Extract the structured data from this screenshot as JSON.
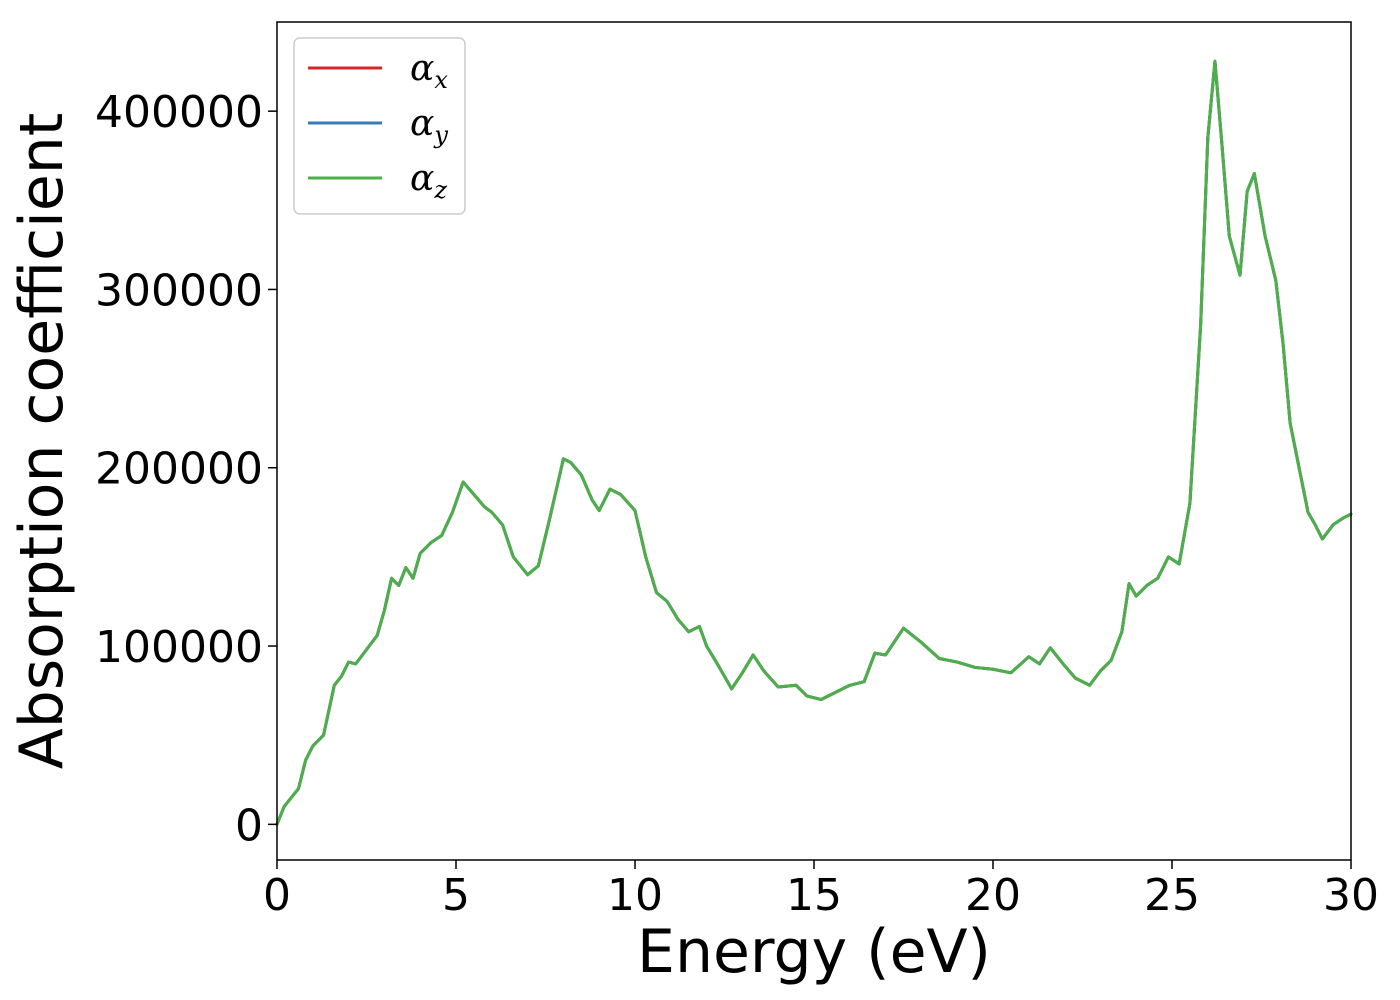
{
  "chart_data": {
    "type": "line",
    "xlabel": "Energy (eV)",
    "ylabel": "Absorption coefficient",
    "xlim": [
      0,
      30
    ],
    "ylim": [
      -20000,
      450000
    ],
    "xticks": [
      0,
      5,
      10,
      15,
      20,
      25,
      30
    ],
    "yticks": [
      0,
      100000,
      200000,
      300000,
      400000
    ],
    "grid": false,
    "legend_position": "top-left",
    "series": [
      {
        "name": "α",
        "subscript": "x",
        "color": "#d62728",
        "x": [
          0,
          0.2,
          0.4,
          0.6,
          0.8,
          1.0,
          1.3,
          1.6,
          1.8,
          2.0,
          2.2,
          2.5,
          2.8,
          3.0,
          3.2,
          3.4,
          3.6,
          3.8,
          4.0,
          4.3,
          4.6,
          4.9,
          5.2,
          5.5,
          5.8,
          6.0,
          6.3,
          6.6,
          7.0,
          7.3,
          7.6,
          8.0,
          8.2,
          8.5,
          8.8,
          9.0,
          9.3,
          9.6,
          10.0,
          10.3,
          10.6,
          10.9,
          11.2,
          11.5,
          11.8,
          12.0,
          12.3,
          12.7,
          13.0,
          13.3,
          13.6,
          14.0,
          14.5,
          14.8,
          15.2,
          15.6,
          16.0,
          16.4,
          16.7,
          17.0,
          17.5,
          18.0,
          18.5,
          19.0,
          19.5,
          20.0,
          20.5,
          21.0,
          21.3,
          21.6,
          22.0,
          22.3,
          22.7,
          23.0,
          23.3,
          23.6,
          23.8,
          24.0,
          24.3,
          24.6,
          24.9,
          25.2,
          25.5,
          25.8,
          26.0,
          26.2,
          26.4,
          26.6,
          26.9,
          27.1,
          27.3,
          27.6,
          27.9,
          28.1,
          28.3,
          28.5,
          28.8,
          29.0,
          29.2,
          29.5,
          29.8,
          30.0
        ],
        "y": [
          0,
          10000,
          15000,
          20000,
          36000,
          44000,
          50000,
          78000,
          83000,
          91000,
          90000,
          98000,
          106000,
          120000,
          138000,
          134000,
          144000,
          138000,
          152000,
          158000,
          162000,
          175000,
          192000,
          185000,
          178000,
          175000,
          168000,
          150000,
          140000,
          145000,
          170000,
          205000,
          203000,
          196000,
          182000,
          176000,
          188000,
          185000,
          176000,
          150000,
          130000,
          125000,
          115000,
          108000,
          111000,
          100000,
          90000,
          76000,
          85000,
          95000,
          86000,
          77000,
          78000,
          72000,
          70000,
          74000,
          78000,
          80000,
          96000,
          95000,
          110000,
          102000,
          93000,
          91000,
          88000,
          87000,
          85000,
          94000,
          90000,
          99000,
          89000,
          82000,
          78000,
          86000,
          92000,
          108000,
          135000,
          128000,
          134000,
          138000,
          150000,
          146000,
          180000,
          280000,
          385000,
          428000,
          380000,
          330000,
          308000,
          355000,
          365000,
          330000,
          305000,
          270000,
          225000,
          205000,
          175000,
          168000,
          160000,
          168000,
          172000,
          174000
        ]
      },
      {
        "name": "α",
        "subscript": "y",
        "color": "#377eb8",
        "x": [
          0,
          0.2,
          0.4,
          0.6,
          0.8,
          1.0,
          1.3,
          1.6,
          1.8,
          2.0,
          2.2,
          2.5,
          2.8,
          3.0,
          3.2,
          3.4,
          3.6,
          3.8,
          4.0,
          4.3,
          4.6,
          4.9,
          5.2,
          5.5,
          5.8,
          6.0,
          6.3,
          6.6,
          7.0,
          7.3,
          7.6,
          8.0,
          8.2,
          8.5,
          8.8,
          9.0,
          9.3,
          9.6,
          10.0,
          10.3,
          10.6,
          10.9,
          11.2,
          11.5,
          11.8,
          12.0,
          12.3,
          12.7,
          13.0,
          13.3,
          13.6,
          14.0,
          14.5,
          14.8,
          15.2,
          15.6,
          16.0,
          16.4,
          16.7,
          17.0,
          17.5,
          18.0,
          18.5,
          19.0,
          19.5,
          20.0,
          20.5,
          21.0,
          21.3,
          21.6,
          22.0,
          22.3,
          22.7,
          23.0,
          23.3,
          23.6,
          23.8,
          24.0,
          24.3,
          24.6,
          24.9,
          25.2,
          25.5,
          25.8,
          26.0,
          26.2,
          26.4,
          26.6,
          26.9,
          27.1,
          27.3,
          27.6,
          27.9,
          28.1,
          28.3,
          28.5,
          28.8,
          29.0,
          29.2,
          29.5,
          29.8,
          30.0
        ],
        "y": [
          0,
          10000,
          15000,
          20000,
          36000,
          44000,
          50000,
          78000,
          83000,
          91000,
          90000,
          98000,
          106000,
          120000,
          138000,
          134000,
          144000,
          138000,
          152000,
          158000,
          162000,
          175000,
          192000,
          185000,
          178000,
          175000,
          168000,
          150000,
          140000,
          145000,
          170000,
          205000,
          203000,
          196000,
          182000,
          176000,
          188000,
          185000,
          176000,
          150000,
          130000,
          125000,
          115000,
          108000,
          111000,
          100000,
          90000,
          76000,
          85000,
          95000,
          86000,
          77000,
          78000,
          72000,
          70000,
          74000,
          78000,
          80000,
          96000,
          95000,
          110000,
          102000,
          93000,
          91000,
          88000,
          87000,
          85000,
          94000,
          90000,
          99000,
          89000,
          82000,
          78000,
          86000,
          92000,
          108000,
          135000,
          128000,
          134000,
          138000,
          150000,
          146000,
          180000,
          280000,
          385000,
          428000,
          380000,
          330000,
          308000,
          355000,
          365000,
          330000,
          305000,
          270000,
          225000,
          205000,
          175000,
          168000,
          160000,
          168000,
          172000,
          174000
        ]
      },
      {
        "name": "α",
        "subscript": "z",
        "color": "#4daf4a",
        "x": [
          0,
          0.2,
          0.4,
          0.6,
          0.8,
          1.0,
          1.3,
          1.6,
          1.8,
          2.0,
          2.2,
          2.5,
          2.8,
          3.0,
          3.2,
          3.4,
          3.6,
          3.8,
          4.0,
          4.3,
          4.6,
          4.9,
          5.2,
          5.5,
          5.8,
          6.0,
          6.3,
          6.6,
          7.0,
          7.3,
          7.6,
          8.0,
          8.2,
          8.5,
          8.8,
          9.0,
          9.3,
          9.6,
          10.0,
          10.3,
          10.6,
          10.9,
          11.2,
          11.5,
          11.8,
          12.0,
          12.3,
          12.7,
          13.0,
          13.3,
          13.6,
          14.0,
          14.5,
          14.8,
          15.2,
          15.6,
          16.0,
          16.4,
          16.7,
          17.0,
          17.5,
          18.0,
          18.5,
          19.0,
          19.5,
          20.0,
          20.5,
          21.0,
          21.3,
          21.6,
          22.0,
          22.3,
          22.7,
          23.0,
          23.3,
          23.6,
          23.8,
          24.0,
          24.3,
          24.6,
          24.9,
          25.2,
          25.5,
          25.8,
          26.0,
          26.2,
          26.4,
          26.6,
          26.9,
          27.1,
          27.3,
          27.6,
          27.9,
          28.1,
          28.3,
          28.5,
          28.8,
          29.0,
          29.2,
          29.5,
          29.8,
          30.0
        ],
        "y": [
          0,
          10000,
          15000,
          20000,
          36000,
          44000,
          50000,
          78000,
          83000,
          91000,
          90000,
          98000,
          106000,
          120000,
          138000,
          134000,
          144000,
          138000,
          152000,
          158000,
          162000,
          175000,
          192000,
          185000,
          178000,
          175000,
          168000,
          150000,
          140000,
          145000,
          170000,
          205000,
          203000,
          196000,
          182000,
          176000,
          188000,
          185000,
          176000,
          150000,
          130000,
          125000,
          115000,
          108000,
          111000,
          100000,
          90000,
          76000,
          85000,
          95000,
          86000,
          77000,
          78000,
          72000,
          70000,
          74000,
          78000,
          80000,
          96000,
          95000,
          110000,
          102000,
          93000,
          91000,
          88000,
          87000,
          85000,
          94000,
          90000,
          99000,
          89000,
          82000,
          78000,
          86000,
          92000,
          108000,
          135000,
          128000,
          134000,
          138000,
          150000,
          146000,
          180000,
          280000,
          385000,
          428000,
          380000,
          330000,
          308000,
          355000,
          365000,
          330000,
          305000,
          270000,
          225000,
          205000,
          175000,
          168000,
          160000,
          168000,
          172000,
          174000
        ]
      }
    ]
  }
}
